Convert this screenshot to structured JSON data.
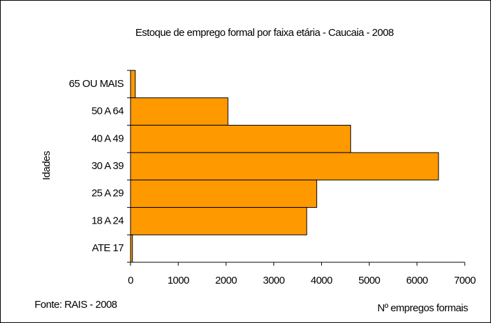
{
  "chart_data": {
    "type": "bar",
    "orientation": "horizontal",
    "title": "Estoque de emprego formal por faixa etária - Caucaia - 2008",
    "y_label": "Idades",
    "x_label": "Nº empregos formais",
    "source": "Fonte: RAIS - 2008",
    "categories": [
      "65 OU MAIS",
      "50 A 64",
      "40 A 49",
      "30 A 39",
      "25 A 29",
      "18 A 24",
      "ATE 17"
    ],
    "values": [
      100,
      2040,
      4610,
      6450,
      3900,
      3690,
      40
    ],
    "color": "#ff9900",
    "xlim": [
      0,
      7000
    ],
    "xticks": [
      0,
      1000,
      2000,
      3000,
      4000,
      5000,
      6000,
      7000
    ]
  }
}
